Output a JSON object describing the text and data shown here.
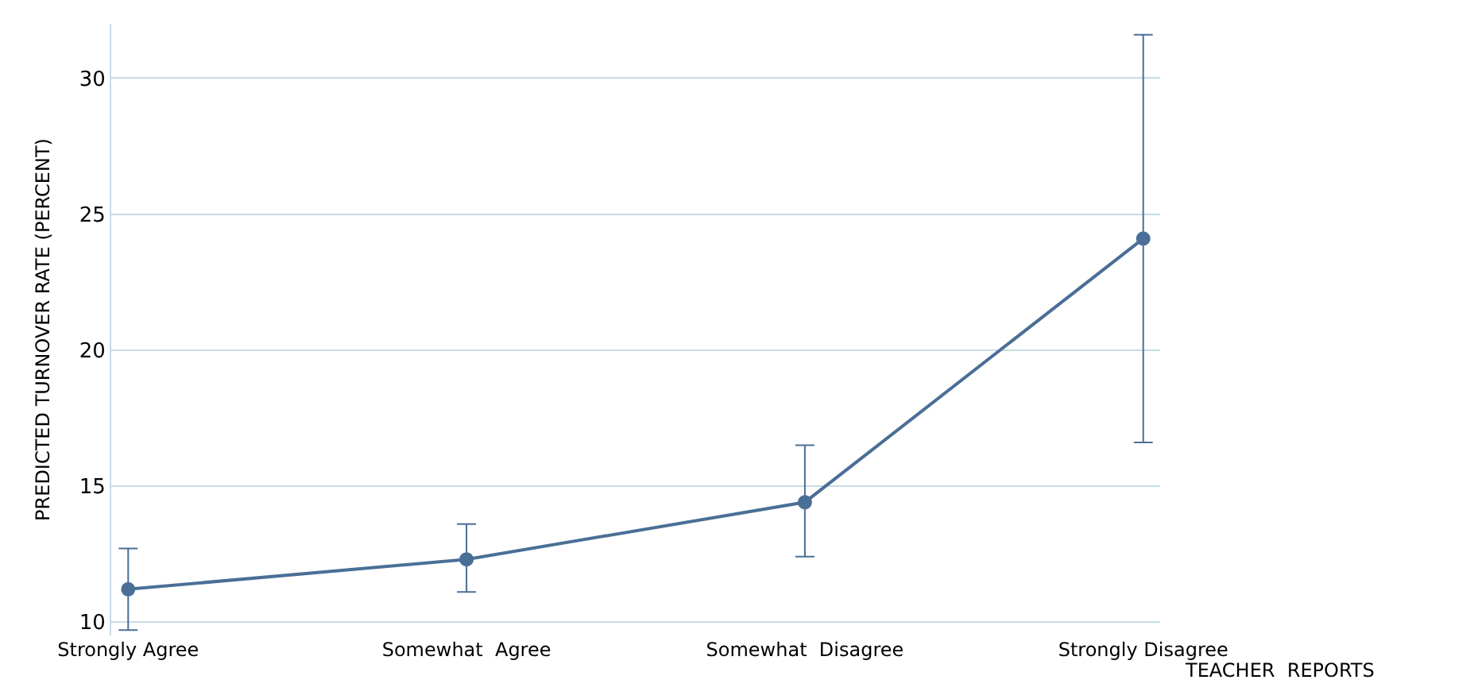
{
  "chart_data": {
    "type": "line",
    "ylabel": "PREDICTED TURNOVER RATE (PERCENT)",
    "xlabel": "TEACHER  REPORTS",
    "categories": [
      "Strongly Agree",
      "Somewhat  Agree",
      "Somewhat  Disagree",
      "Strongly Disagree"
    ],
    "series": [
      {
        "color": "#4a6f96",
        "values": [
          11.2,
          12.3,
          14.4,
          24.1
        ],
        "errors": [
          [
            9.7,
            12.7
          ],
          [
            11.1,
            13.6
          ],
          [
            12.4,
            16.5
          ],
          7.5
        ]
      }
    ],
    "ylim": [
      9.5,
      32
    ],
    "yticks": [
      10,
      15,
      20,
      25,
      30
    ],
    "grid": "y",
    "marker": "circle",
    "line_style": "solid"
  }
}
